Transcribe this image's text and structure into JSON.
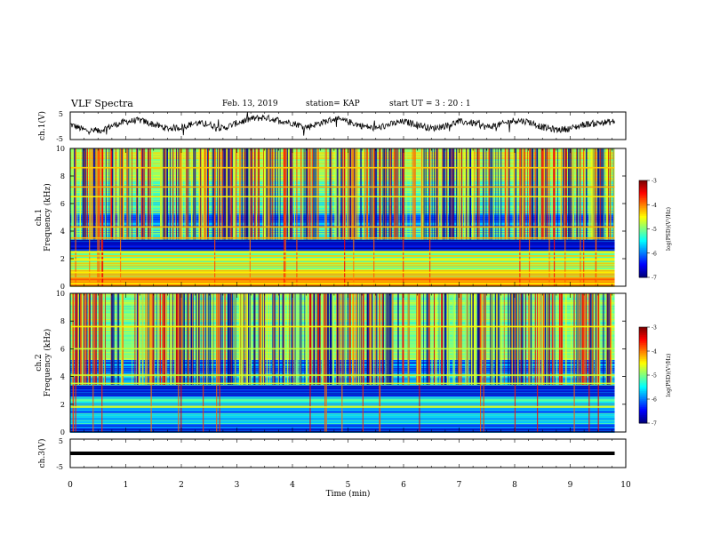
{
  "header": {
    "title": "VLF Spectra",
    "date": "Feb. 13, 2019",
    "station": "station= KAP",
    "start_ut": "start  UT =   3 : 20 : 1"
  },
  "chart_data": [
    {
      "type": "line",
      "panel": "ch1-waveform",
      "ylabel": "ch.1(V)",
      "ylim": [
        -5,
        5
      ],
      "y_ticks": [
        "5",
        "-5"
      ],
      "x": [
        0,
        0.25,
        0.5,
        0.75,
        1,
        1.25,
        1.5,
        1.75,
        2,
        2.25,
        2.5,
        2.75,
        3,
        3.25,
        3.5,
        3.75,
        4,
        4.25,
        4.5,
        4.75,
        5,
        5.25,
        5.5,
        5.75,
        6,
        6.25,
        6.5,
        6.75,
        7,
        7.25,
        7.5,
        7.75,
        8,
        8.25,
        8.5,
        8.75,
        9,
        9.25,
        9.5,
        9.8
      ],
      "values": [
        0.5,
        -1.5,
        -2,
        0,
        1.5,
        2,
        0.5,
        -1,
        -0.5,
        1,
        0.5,
        -1,
        1,
        2.5,
        3,
        2,
        1,
        -0.5,
        1,
        2.5,
        1.5,
        0,
        -1,
        0.5,
        1.5,
        0.5,
        -1,
        0,
        1.5,
        1,
        -0.5,
        0.5,
        2,
        1.5,
        -0.5,
        -1.5,
        -1,
        0.5,
        1,
        1.5
      ]
    },
    {
      "type": "heatmap",
      "panel": "ch1-spectrogram",
      "ylabel": "ch.1\nFrequency (kHz)",
      "y_axis_ticks": [
        "0",
        "2",
        "4",
        "6",
        "8",
        "10"
      ],
      "ylim": [
        0,
        10
      ],
      "xlim": [
        0,
        9.8
      ],
      "colorbar": {
        "label": "log(PSD)(V²/Hz)",
        "range": [
          -7,
          -3
        ],
        "ticks": [
          "-3",
          "-4",
          "-5",
          "-6",
          "-7"
        ]
      },
      "bands_khz": [
        {
          "from": 0,
          "to": 0.6,
          "level": -4.2
        },
        {
          "from": 0.6,
          "to": 1.2,
          "level": -4.6
        },
        {
          "from": 1.2,
          "to": 2.6,
          "level": -4.9
        },
        {
          "from": 2.6,
          "to": 3.4,
          "level": -6.6
        },
        {
          "from": 3.4,
          "to": 4.4,
          "level": -5.5
        },
        {
          "from": 4.4,
          "to": 5.3,
          "level": -6.0
        },
        {
          "from": 5.3,
          "to": 7.5,
          "level": -5.2
        },
        {
          "from": 7.5,
          "to": 10,
          "level": -4.9
        }
      ],
      "lines_khz": [
        0.2,
        0.6,
        1.0,
        1.9,
        2.2,
        2.5,
        3.5,
        4.3,
        6.5,
        7.2,
        8.6
      ]
    },
    {
      "type": "heatmap",
      "panel": "ch2-spectrogram",
      "ylabel": "ch.2\nFrequency (kHz)",
      "y_axis_ticks": [
        "0",
        "2",
        "4",
        "6",
        "8",
        "10"
      ],
      "ylim": [
        0,
        10
      ],
      "xlim": [
        0,
        9.8
      ],
      "colorbar": {
        "label": "log(PSD)(V²/Hz)",
        "range": [
          -7,
          -3
        ],
        "ticks": [
          "-3",
          "-4",
          "-5",
          "-6",
          "-7"
        ]
      },
      "bands_khz": [
        {
          "from": 0,
          "to": 0.5,
          "level": -6.2
        },
        {
          "from": 0.5,
          "to": 1.8,
          "level": -5.7
        },
        {
          "from": 1.8,
          "to": 2.6,
          "level": -5.4
        },
        {
          "from": 2.6,
          "to": 3.4,
          "level": -6.6
        },
        {
          "from": 3.4,
          "to": 4.3,
          "level": -5.5
        },
        {
          "from": 4.3,
          "to": 5.2,
          "level": -6.1
        },
        {
          "from": 5.2,
          "to": 10,
          "level": -5.0
        }
      ],
      "lines_khz": [
        1.8,
        3.5,
        4.1,
        6.0,
        7.6
      ]
    },
    {
      "type": "line",
      "panel": "ch3-waveform",
      "ylabel": "ch.3(V)",
      "ylim": [
        -5,
        5
      ],
      "y_ticks": [
        "5",
        "-5"
      ],
      "x": [
        0,
        9.8
      ],
      "values": [
        0,
        0
      ]
    }
  ],
  "x_axis": {
    "label": "Time  (min)",
    "ticks": [
      "0",
      "1",
      "2",
      "3",
      "4",
      "5",
      "6",
      "7",
      "8",
      "9",
      "10"
    ]
  }
}
